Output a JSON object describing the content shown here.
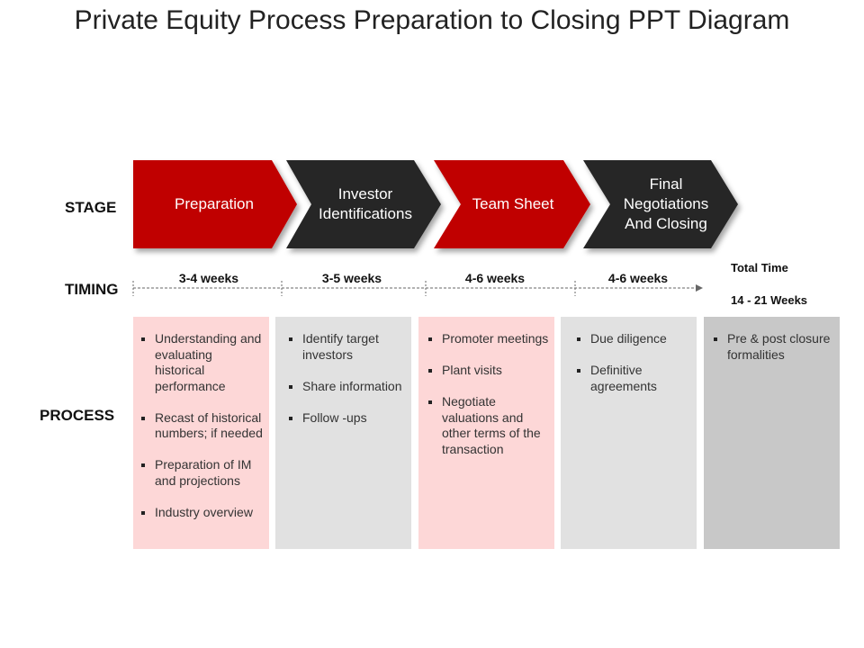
{
  "title": "Private Equity Process Preparation to Closing PPT Diagram",
  "row_labels": {
    "stage": "STAGE",
    "timing": "TIMING",
    "process": "PROCESS"
  },
  "stages": [
    {
      "label": "Preparation",
      "color": "#c00000"
    },
    {
      "label": "Investor Identifications",
      "color": "#262626"
    },
    {
      "label": "Team Sheet",
      "color": "#c00000"
    },
    {
      "label": "Final Negotiations And Closing",
      "color": "#262626"
    }
  ],
  "timing": [
    "3-4 weeks",
    "3-5 weeks",
    "4-6 weeks",
    "4-6 weeks"
  ],
  "total_time": {
    "label": "Total Time",
    "value": "14 - 21 Weeks"
  },
  "process": [
    {
      "bg": "#fdd7d7",
      "items": [
        "Understanding and evaluating historical performance",
        "Recast of historical numbers; if needed",
        "Preparation of IM and projections",
        "Industry overview"
      ]
    },
    {
      "bg": "#e1e1e1",
      "items": [
        "Identify target investors",
        "Share information",
        "Follow -ups"
      ]
    },
    {
      "bg": "#fdd7d7",
      "items": [
        "Promoter meetings",
        "Plant visits",
        "Negotiate valuations and other terms of the transaction"
      ]
    },
    {
      "bg": "#e1e1e1",
      "items": [
        "Due diligence",
        "Definitive agreements"
      ]
    },
    {
      "bg": "#c8c8c8",
      "items": [
        "Pre & post closure formalities"
      ]
    }
  ]
}
